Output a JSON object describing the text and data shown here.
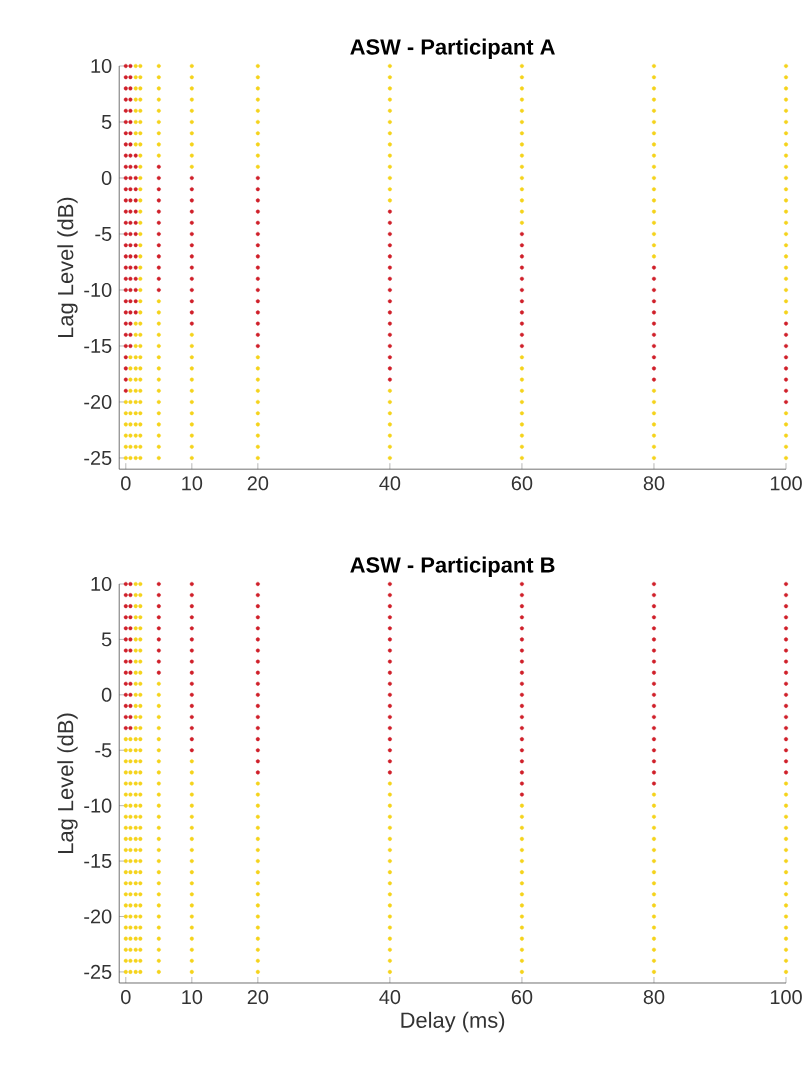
{
  "chart_data": [
    {
      "type": "scatter",
      "title": "ASW - Participant A",
      "ylabel": "Lag Level (dB)",
      "xlim": [
        -1,
        100
      ],
      "ylim": [
        -26,
        10
      ],
      "xticks": [
        0,
        10,
        20,
        40,
        60,
        80,
        100
      ],
      "yticks": [
        10,
        5,
        0,
        -5,
        -10,
        -15,
        -20,
        -25
      ],
      "grid": false,
      "series": [
        {
          "color": "#d0202a",
          "x": [
            0,
            0,
            0,
            0,
            0,
            0,
            0,
            0,
            0,
            0,
            0,
            0,
            0,
            0,
            0,
            0,
            0,
            0,
            0,
            0,
            0,
            0,
            0,
            0,
            0,
            0,
            0,
            0,
            0,
            0
          ],
          "values": [
            10,
            9,
            8,
            7,
            6,
            5,
            4,
            3,
            2,
            1,
            0,
            -1,
            -2,
            -3,
            -4,
            -5,
            -6,
            -7,
            -8,
            -9,
            -10,
            -11,
            -12,
            -13,
            -14,
            -15,
            -16,
            -17,
            -18,
            -19
          ]
        },
        {
          "color": "#d0202a",
          "x": [
            0.7,
            0.7,
            0.7,
            0.7,
            0.7,
            0.7,
            0.7,
            0.7,
            0.7,
            0.7,
            0.7,
            0.7,
            0.7,
            0.7,
            0.7,
            0.7,
            0.7,
            0.7,
            0.7,
            0.7,
            0.7,
            0.7,
            0.7,
            0.7,
            0.7,
            0.7
          ],
          "values": [
            10,
            9,
            8,
            7,
            6,
            5,
            4,
            3,
            2,
            1,
            0,
            -1,
            -2,
            -3,
            -4,
            -5,
            -6,
            -7,
            -8,
            -9,
            -10,
            -11,
            -12,
            -13,
            -14,
            -15
          ]
        },
        {
          "color": "#d0202a",
          "x": [
            1.5,
            1.5,
            1.5,
            1.5,
            1.5,
            1.5,
            1.5,
            1.5,
            1.5,
            1.5,
            1.5,
            1.5,
            1.5,
            1.5,
            1.5
          ],
          "values": [
            2,
            1,
            0,
            -1,
            -2,
            -3,
            -4,
            -5,
            -6,
            -7,
            -8,
            -9,
            -10,
            -11,
            -12
          ]
        },
        {
          "color": "#d0202a",
          "x": [
            5,
            5,
            5,
            5,
            5,
            5,
            5,
            5,
            5,
            5,
            5,
            5
          ],
          "values": [
            1,
            0,
            -1,
            -2,
            -3,
            -4,
            -5,
            -6,
            -7,
            -8,
            -9,
            -10
          ]
        },
        {
          "color": "#d0202a",
          "x": [
            10,
            10,
            10,
            10,
            10,
            10,
            10,
            10,
            10,
            10,
            10,
            10,
            10,
            10
          ],
          "values": [
            0,
            -1,
            -2,
            -3,
            -4,
            -5,
            -6,
            -7,
            -8,
            -9,
            -10,
            -11,
            -12,
            -13
          ]
        },
        {
          "color": "#d0202a",
          "x": [
            20,
            20,
            20,
            20,
            20,
            20,
            20,
            20,
            20,
            20,
            20,
            20,
            20,
            20,
            20,
            20
          ],
          "values": [
            0,
            -1,
            -2,
            -3,
            -4,
            -5,
            -6,
            -7,
            -8,
            -9,
            -10,
            -11,
            -12,
            -13,
            -14,
            -15
          ]
        },
        {
          "color": "#d0202a",
          "x": [
            40,
            40,
            40,
            40,
            40,
            40,
            40,
            40,
            40,
            40,
            40,
            40,
            40,
            40,
            40,
            40
          ],
          "values": [
            -3,
            -4,
            -5,
            -6,
            -7,
            -8,
            -9,
            -10,
            -11,
            -12,
            -13,
            -14,
            -15,
            -16,
            -17,
            -18
          ]
        },
        {
          "color": "#d0202a",
          "x": [
            60,
            60,
            60,
            60,
            60,
            60,
            60,
            60,
            60,
            60,
            60
          ],
          "values": [
            -5,
            -6,
            -7,
            -8,
            -9,
            -10,
            -11,
            -12,
            -13,
            -14,
            -15
          ]
        },
        {
          "color": "#d0202a",
          "x": [
            80,
            80,
            80,
            80,
            80,
            80,
            80,
            80,
            80,
            80,
            80
          ],
          "values": [
            -8,
            -9,
            -10,
            -11,
            -12,
            -13,
            -14,
            -15,
            -16,
            -17,
            -18
          ]
        },
        {
          "color": "#d0202a",
          "x": [
            100,
            100,
            100,
            100,
            100,
            100,
            100,
            100
          ],
          "values": [
            -13,
            -14,
            -15,
            -16,
            -17,
            -18,
            -19,
            -20
          ]
        },
        {
          "color": "#f5d31c",
          "x": [
            0,
            0,
            0,
            0,
            0,
            0
          ],
          "values": [
            -20,
            -21,
            -22,
            -23,
            -24,
            -25
          ]
        },
        {
          "color": "#f5d31c",
          "x": [
            0.7,
            0.7,
            0.7,
            0.7,
            0.7,
            0.7,
            0.7,
            0.7,
            0.7,
            0.7
          ],
          "values": [
            -16,
            -17,
            -18,
            -19,
            -20,
            -21,
            -22,
            -23,
            -24,
            -25
          ]
        },
        {
          "color": "#f5d31c",
          "x": [
            1.5,
            1.5,
            1.5,
            1.5,
            1.5,
            1.5,
            1.5,
            1.5
          ],
          "values": [
            10,
            9,
            8,
            7,
            6,
            5,
            4,
            3
          ]
        },
        {
          "color": "#f5d31c",
          "x": [
            1.5,
            1.5,
            1.5,
            1.5,
            1.5,
            1.5,
            1.5,
            1.5,
            1.5,
            1.5,
            1.5,
            1.5,
            1.5
          ],
          "values": [
            -13,
            -14,
            -15,
            -16,
            -17,
            -18,
            -19,
            -20,
            -21,
            -22,
            -23,
            -24,
            -25
          ]
        },
        {
          "color": "#f5d31c",
          "x": [
            2.2,
            2.2,
            2.2,
            2.2,
            2.2,
            2.2,
            2.2,
            2.2,
            2.2,
            2.2,
            2.2,
            2.2,
            2.2,
            2.2,
            2.2,
            2.2,
            2.2,
            2.2,
            2.2,
            2.2,
            2.2,
            2.2,
            2.2,
            2.2,
            2.2,
            2.2,
            2.2,
            2.2,
            2.2,
            2.2,
            2.2,
            2.2,
            2.2,
            2.2,
            2.2,
            2.2
          ],
          "values": [
            10,
            9,
            8,
            7,
            6,
            5,
            4,
            3,
            2,
            1,
            0,
            -1,
            -2,
            -3,
            -4,
            -5,
            -6,
            -7,
            -8,
            -9,
            -10,
            -11,
            -12,
            -13,
            -14,
            -15,
            -16,
            -17,
            -18,
            -19,
            -20,
            -21,
            -22,
            -23,
            -24,
            -25
          ]
        },
        {
          "color": "#f5d31c",
          "x": [
            5,
            5,
            5,
            5,
            5,
            5,
            5,
            5,
            5
          ],
          "values": [
            10,
            9,
            8,
            7,
            6,
            5,
            4,
            3,
            2
          ]
        },
        {
          "color": "#f5d31c",
          "x": [
            5,
            5,
            5,
            5,
            5,
            5,
            5,
            5,
            5,
            5,
            5,
            5,
            5,
            5,
            5
          ],
          "values": [
            -11,
            -12,
            -13,
            -14,
            -15,
            -16,
            -17,
            -18,
            -19,
            -20,
            -21,
            -22,
            -23,
            -24,
            -25
          ]
        },
        {
          "color": "#f5d31c",
          "x": [
            10,
            10,
            10,
            10,
            10,
            10,
            10,
            10,
            10,
            10
          ],
          "values": [
            10,
            9,
            8,
            7,
            6,
            5,
            4,
            3,
            2,
            1
          ]
        },
        {
          "color": "#f5d31c",
          "x": [
            10,
            10,
            10,
            10,
            10,
            10,
            10,
            10,
            10,
            10,
            10,
            10
          ],
          "values": [
            -14,
            -15,
            -16,
            -17,
            -18,
            -19,
            -20,
            -21,
            -22,
            -23,
            -24,
            -25
          ]
        },
        {
          "color": "#f5d31c",
          "x": [
            20,
            20,
            20,
            20,
            20,
            20,
            20,
            20,
            20,
            20
          ],
          "values": [
            10,
            9,
            8,
            7,
            6,
            5,
            4,
            3,
            2,
            1
          ]
        },
        {
          "color": "#f5d31c",
          "x": [
            20,
            20,
            20,
            20,
            20,
            20,
            20,
            20,
            20,
            20
          ],
          "values": [
            -16,
            -17,
            -18,
            -19,
            -20,
            -21,
            -22,
            -23,
            -24,
            -25
          ]
        },
        {
          "color": "#f5d31c",
          "x": [
            40,
            40,
            40,
            40,
            40,
            40,
            40,
            40,
            40,
            40,
            40,
            40,
            40
          ],
          "values": [
            10,
            9,
            8,
            7,
            6,
            5,
            4,
            3,
            2,
            1,
            0,
            -1,
            -2
          ]
        },
        {
          "color": "#f5d31c",
          "x": [
            40,
            40,
            40,
            40,
            40,
            40,
            40
          ],
          "values": [
            -19,
            -20,
            -21,
            -22,
            -23,
            -24,
            -25
          ]
        },
        {
          "color": "#f5d31c",
          "x": [
            60,
            60,
            60,
            60,
            60,
            60,
            60,
            60,
            60,
            60,
            60,
            60,
            60,
            60,
            60
          ],
          "values": [
            10,
            9,
            8,
            7,
            6,
            5,
            4,
            3,
            2,
            1,
            0,
            -1,
            -2,
            -3,
            -4
          ]
        },
        {
          "color": "#f5d31c",
          "x": [
            60,
            60,
            60,
            60,
            60,
            60,
            60,
            60,
            60,
            60
          ],
          "values": [
            -16,
            -17,
            -18,
            -19,
            -20,
            -21,
            -22,
            -23,
            -24,
            -25
          ]
        },
        {
          "color": "#f5d31c",
          "x": [
            80,
            80,
            80,
            80,
            80,
            80,
            80,
            80,
            80,
            80,
            80,
            80,
            80,
            80,
            80,
            80,
            80,
            80
          ],
          "values": [
            10,
            9,
            8,
            7,
            6,
            5,
            4,
            3,
            2,
            1,
            0,
            -1,
            -2,
            -3,
            -4,
            -5,
            -6,
            -7
          ]
        },
        {
          "color": "#f5d31c",
          "x": [
            80,
            80,
            80,
            80,
            80,
            80,
            80
          ],
          "values": [
            -19,
            -20,
            -21,
            -22,
            -23,
            -24,
            -25
          ]
        },
        {
          "color": "#f5d31c",
          "x": [
            100,
            100,
            100,
            100,
            100,
            100,
            100,
            100,
            100,
            100,
            100,
            100,
            100,
            100,
            100,
            100,
            100,
            100,
            100,
            100,
            100,
            100,
            100
          ],
          "values": [
            10,
            9,
            8,
            7,
            6,
            5,
            4,
            3,
            2,
            1,
            0,
            -1,
            -2,
            -3,
            -4,
            -5,
            -6,
            -7,
            -8,
            -9,
            -10,
            -11,
            -12
          ]
        },
        {
          "color": "#f5d31c",
          "x": [
            100,
            100,
            100,
            100,
            100
          ],
          "values": [
            -21,
            -22,
            -23,
            -24,
            -25
          ]
        }
      ]
    },
    {
      "type": "scatter",
      "title": "ASW - Participant B",
      "xlabel": "Delay (ms)",
      "ylabel": "Lag Level (dB)",
      "xlim": [
        -1,
        100
      ],
      "ylim": [
        -26,
        10
      ],
      "xticks": [
        0,
        10,
        20,
        40,
        60,
        80,
        100
      ],
      "yticks": [
        10,
        5,
        0,
        -5,
        -10,
        -15,
        -20,
        -25
      ],
      "grid": false,
      "series": [
        {
          "color": "#d0202a",
          "x": [
            0,
            0,
            0,
            0,
            0,
            0,
            0,
            0,
            0,
            0,
            0,
            0,
            0,
            0
          ],
          "values": [
            10,
            9,
            8,
            7,
            6,
            5,
            4,
            3,
            2,
            1,
            0,
            -1,
            -2,
            -3
          ]
        },
        {
          "color": "#d0202a",
          "x": [
            0.7,
            0.7,
            0.7,
            0.7,
            0.7,
            0.7,
            0.7,
            0.7,
            0.7,
            0.7,
            0.7,
            0.7,
            0.7,
            0.7
          ],
          "values": [
            10,
            9,
            8,
            7,
            6,
            5,
            4,
            3,
            2,
            1,
            0,
            -1,
            -2,
            -3
          ]
        },
        {
          "color": "#d0202a",
          "x": [
            5,
            5,
            5,
            5,
            5,
            5,
            5,
            5,
            5
          ],
          "values": [
            10,
            9,
            8,
            7,
            6,
            5,
            4,
            3,
            2
          ]
        },
        {
          "color": "#d0202a",
          "x": [
            10,
            10,
            10,
            10,
            10,
            10,
            10,
            10,
            10,
            10,
            10,
            10,
            10,
            10,
            10,
            10
          ],
          "values": [
            10,
            9,
            8,
            7,
            6,
            5,
            4,
            3,
            2,
            1,
            0,
            -1,
            -2,
            -3,
            -4,
            -5
          ]
        },
        {
          "color": "#d0202a",
          "x": [
            20,
            20,
            20,
            20,
            20,
            20,
            20,
            20,
            20,
            20,
            20,
            20,
            20,
            20,
            20,
            20,
            20,
            20
          ],
          "values": [
            10,
            9,
            8,
            7,
            6,
            5,
            4,
            3,
            2,
            1,
            0,
            -1,
            -2,
            -3,
            -4,
            -5,
            -6,
            -7
          ]
        },
        {
          "color": "#d0202a",
          "x": [
            40,
            40,
            40,
            40,
            40,
            40,
            40,
            40,
            40,
            40,
            40,
            40,
            40,
            40,
            40,
            40,
            40,
            40
          ],
          "values": [
            10,
            9,
            8,
            7,
            6,
            5,
            4,
            3,
            2,
            1,
            0,
            -1,
            -2,
            -3,
            -4,
            -5,
            -6,
            -7
          ]
        },
        {
          "color": "#d0202a",
          "x": [
            60,
            60,
            60,
            60,
            60,
            60,
            60,
            60,
            60,
            60,
            60,
            60,
            60,
            60,
            60,
            60,
            60,
            60,
            60,
            60
          ],
          "values": [
            10,
            9,
            8,
            7,
            6,
            5,
            4,
            3,
            2,
            1,
            0,
            -1,
            -2,
            -3,
            -4,
            -5,
            -6,
            -7,
            -8,
            -9
          ]
        },
        {
          "color": "#d0202a",
          "x": [
            80,
            80,
            80,
            80,
            80,
            80,
            80,
            80,
            80,
            80,
            80,
            80,
            80,
            80,
            80,
            80,
            80,
            80,
            80
          ],
          "values": [
            10,
            9,
            8,
            7,
            6,
            5,
            4,
            3,
            2,
            1,
            0,
            -1,
            -2,
            -3,
            -4,
            -5,
            -6,
            -7,
            -8
          ]
        },
        {
          "color": "#d0202a",
          "x": [
            100,
            100,
            100,
            100,
            100,
            100,
            100,
            100,
            100,
            100,
            100,
            100,
            100,
            100,
            100,
            100,
            100,
            100
          ],
          "values": [
            10,
            9,
            8,
            7,
            6,
            5,
            4,
            3,
            2,
            1,
            0,
            -1,
            -2,
            -3,
            -4,
            -5,
            -6,
            -7
          ]
        },
        {
          "color": "#f5d31c",
          "x": [
            0,
            0,
            0,
            0,
            0,
            0,
            0,
            0,
            0,
            0,
            0,
            0,
            0,
            0,
            0,
            0,
            0,
            0,
            0,
            0,
            0,
            0
          ],
          "values": [
            -4,
            -5,
            -6,
            -7,
            -8,
            -9,
            -10,
            -11,
            -12,
            -13,
            -14,
            -15,
            -16,
            -17,
            -18,
            -19,
            -20,
            -21,
            -22,
            -23,
            -24,
            -25
          ]
        },
        {
          "color": "#f5d31c",
          "x": [
            0.7,
            0.7,
            0.7,
            0.7,
            0.7,
            0.7,
            0.7,
            0.7,
            0.7,
            0.7,
            0.7,
            0.7,
            0.7,
            0.7,
            0.7,
            0.7,
            0.7,
            0.7,
            0.7,
            0.7,
            0.7,
            0.7
          ],
          "values": [
            -4,
            -5,
            -6,
            -7,
            -8,
            -9,
            -10,
            -11,
            -12,
            -13,
            -14,
            -15,
            -16,
            -17,
            -18,
            -19,
            -20,
            -21,
            -22,
            -23,
            -24,
            -25
          ]
        },
        {
          "color": "#f5d31c",
          "x": [
            1.5,
            1.5,
            1.5,
            1.5,
            1.5,
            1.5,
            1.5,
            1.5,
            1.5,
            1.5,
            1.5,
            1.5,
            1.5,
            1.5,
            1.5,
            1.5,
            1.5,
            1.5,
            1.5,
            1.5,
            1.5,
            1.5,
            1.5,
            1.5,
            1.5,
            1.5,
            1.5,
            1.5,
            1.5,
            1.5,
            1.5,
            1.5,
            1.5,
            1.5,
            1.5,
            1.5
          ],
          "values": [
            10,
            9,
            8,
            7,
            6,
            5,
            4,
            3,
            2,
            1,
            0,
            -1,
            -2,
            -3,
            -4,
            -5,
            -6,
            -7,
            -8,
            -9,
            -10,
            -11,
            -12,
            -13,
            -14,
            -15,
            -16,
            -17,
            -18,
            -19,
            -20,
            -21,
            -22,
            -23,
            -24,
            -25
          ]
        },
        {
          "color": "#f5d31c",
          "x": [
            2.2,
            2.2,
            2.2,
            2.2,
            2.2,
            2.2,
            2.2,
            2.2,
            2.2,
            2.2,
            2.2,
            2.2,
            2.2,
            2.2,
            2.2,
            2.2,
            2.2,
            2.2,
            2.2,
            2.2,
            2.2,
            2.2,
            2.2,
            2.2,
            2.2,
            2.2,
            2.2,
            2.2,
            2.2,
            2.2,
            2.2,
            2.2,
            2.2,
            2.2,
            2.2,
            2.2
          ],
          "values": [
            10,
            9,
            8,
            7,
            6,
            5,
            4,
            3,
            2,
            1,
            0,
            -1,
            -2,
            -3,
            -4,
            -5,
            -6,
            -7,
            -8,
            -9,
            -10,
            -11,
            -12,
            -13,
            -14,
            -15,
            -16,
            -17,
            -18,
            -19,
            -20,
            -21,
            -22,
            -23,
            -24,
            -25
          ]
        },
        {
          "color": "#f5d31c",
          "x": [
            5,
            5,
            5,
            5,
            5,
            5,
            5,
            5,
            5,
            5,
            5,
            5,
            5,
            5,
            5,
            5,
            5,
            5,
            5,
            5,
            5,
            5,
            5,
            5,
            5,
            5,
            5
          ],
          "values": [
            1,
            0,
            -1,
            -2,
            -3,
            -4,
            -5,
            -6,
            -7,
            -8,
            -9,
            -10,
            -11,
            -12,
            -13,
            -14,
            -15,
            -16,
            -17,
            -18,
            -19,
            -20,
            -21,
            -22,
            -23,
            -24,
            -25
          ]
        },
        {
          "color": "#f5d31c",
          "x": [
            10,
            10,
            10,
            10,
            10,
            10,
            10,
            10,
            10,
            10,
            10,
            10,
            10,
            10,
            10,
            10,
            10,
            10,
            10,
            10
          ],
          "values": [
            -6,
            -7,
            -8,
            -9,
            -10,
            -11,
            -12,
            -13,
            -14,
            -15,
            -16,
            -17,
            -18,
            -19,
            -20,
            -21,
            -22,
            -23,
            -24,
            -25
          ]
        },
        {
          "color": "#f5d31c",
          "x": [
            20,
            20,
            20,
            20,
            20,
            20,
            20,
            20,
            20,
            20,
            20,
            20,
            20,
            20,
            20,
            20,
            20,
            20
          ],
          "values": [
            -8,
            -9,
            -10,
            -11,
            -12,
            -13,
            -14,
            -15,
            -16,
            -17,
            -18,
            -19,
            -20,
            -21,
            -22,
            -23,
            -24,
            -25
          ]
        },
        {
          "color": "#f5d31c",
          "x": [
            40,
            40,
            40,
            40,
            40,
            40,
            40,
            40,
            40,
            40,
            40,
            40,
            40,
            40,
            40,
            40,
            40,
            40
          ],
          "values": [
            -8,
            -9,
            -10,
            -11,
            -12,
            -13,
            -14,
            -15,
            -16,
            -17,
            -18,
            -19,
            -20,
            -21,
            -22,
            -23,
            -24,
            -25
          ]
        },
        {
          "color": "#f5d31c",
          "x": [
            60,
            60,
            60,
            60,
            60,
            60,
            60,
            60,
            60,
            60,
            60,
            60,
            60,
            60,
            60,
            60
          ],
          "values": [
            -10,
            -11,
            -12,
            -13,
            -14,
            -15,
            -16,
            -17,
            -18,
            -19,
            -20,
            -21,
            -22,
            -23,
            -24,
            -25
          ]
        },
        {
          "color": "#f5d31c",
          "x": [
            80,
            80,
            80,
            80,
            80,
            80,
            80,
            80,
            80,
            80,
            80,
            80,
            80,
            80,
            80,
            80,
            80
          ],
          "values": [
            -9,
            -10,
            -11,
            -12,
            -13,
            -14,
            -15,
            -16,
            -17,
            -18,
            -19,
            -20,
            -21,
            -22,
            -23,
            -24,
            -25
          ]
        },
        {
          "color": "#f5d31c",
          "x": [
            100,
            100,
            100,
            100,
            100,
            100,
            100,
            100,
            100,
            100,
            100,
            100,
            100,
            100,
            100,
            100,
            100,
            100
          ],
          "values": [
            -8,
            -9,
            -10,
            -11,
            -12,
            -13,
            -14,
            -15,
            -16,
            -17,
            -18,
            -19,
            -20,
            -21,
            -22,
            -23,
            -24,
            -25
          ]
        }
      ]
    }
  ]
}
